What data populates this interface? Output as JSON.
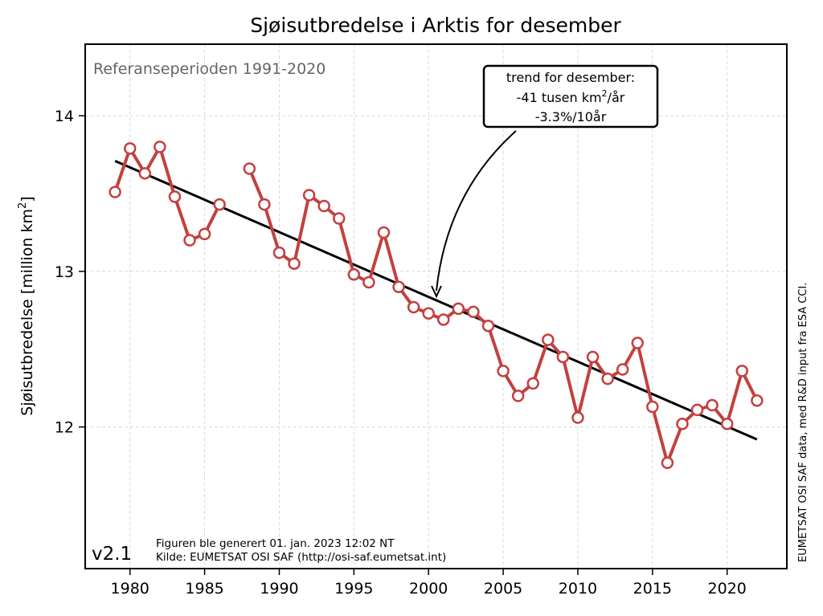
{
  "chart_data": {
    "type": "line",
    "title": "Sjøisutbredelse i Arktis for desember",
    "xlabel": "",
    "ylabel": "Sjøisutbredelse [million km",
    "ylabel_sup": "2",
    "ylabel_suffix": "]",
    "xlim": [
      1977.0,
      2024.0
    ],
    "ylim": [
      11.09,
      14.46
    ],
    "grid": true,
    "x_ticks": [
      1980,
      1985,
      1990,
      1995,
      2000,
      2005,
      2010,
      2015,
      2020
    ],
    "x_tick_labels": [
      "1980",
      "1985",
      "1990",
      "1995",
      "2000",
      "2005",
      "2010",
      "2015",
      "2020"
    ],
    "y_ticks": [
      12,
      13,
      14
    ],
    "y_tick_labels": [
      "12",
      "13",
      "14"
    ],
    "series": [
      {
        "name": "Sjøisutbredelse desember",
        "color": "#c44040",
        "marker": "open-circle",
        "segments": [
          {
            "x": [
              1979,
              1980,
              1981,
              1982,
              1983,
              1984,
              1985,
              1986
            ],
            "y": [
              13.51,
              13.79,
              13.63,
              13.8,
              13.48,
              13.2,
              13.24,
              13.43
            ]
          },
          {
            "x": [
              1988,
              1989,
              1990,
              1991,
              1992,
              1993,
              1994,
              1995,
              1996,
              1997,
              1998,
              1999,
              2000,
              2001,
              2002,
              2003,
              2004,
              2005,
              2006,
              2007,
              2008,
              2009,
              2010,
              2011,
              2012,
              2013,
              2014,
              2015,
              2016,
              2017,
              2018,
              2019,
              2020,
              2021,
              2022
            ],
            "y": [
              13.66,
              13.43,
              13.12,
              13.05,
              13.49,
              13.42,
              13.34,
              12.98,
              12.93,
              13.25,
              12.9,
              12.77,
              12.73,
              12.69,
              12.76,
              12.74,
              12.65,
              12.36,
              12.2,
              12.28,
              12.56,
              12.45,
              12.06,
              12.45,
              12.31,
              12.37,
              12.54,
              12.13,
              11.77,
              12.02,
              12.11,
              12.14,
              12.02,
              12.36,
              12.17
            ]
          }
        ]
      },
      {
        "name": "Trend",
        "color": "#000000",
        "x": [
          1979,
          2022
        ],
        "y": [
          13.71,
          11.92
        ]
      }
    ],
    "annotations": {
      "reference_period": "Referanseperioden 1991-2020",
      "trend_box": {
        "line1": "trend for desember:",
        "line2_a": "-41 tusen km",
        "line2_sup": "2",
        "line2_b": "/år",
        "line3": "-3.3%/10år",
        "arrow_target": {
          "x": 2000.5,
          "y": 12.83
        }
      },
      "version": "v2.1",
      "generated": "Figuren ble generert 01. jan. 2023 12:02 NT",
      "source": "Kilde: EUMETSAT OSI SAF (http://osi-saf.eumetsat.int)",
      "side_credit": "EUMETSAT OSI SAF data, med R&D input fra ESA CCI."
    }
  }
}
